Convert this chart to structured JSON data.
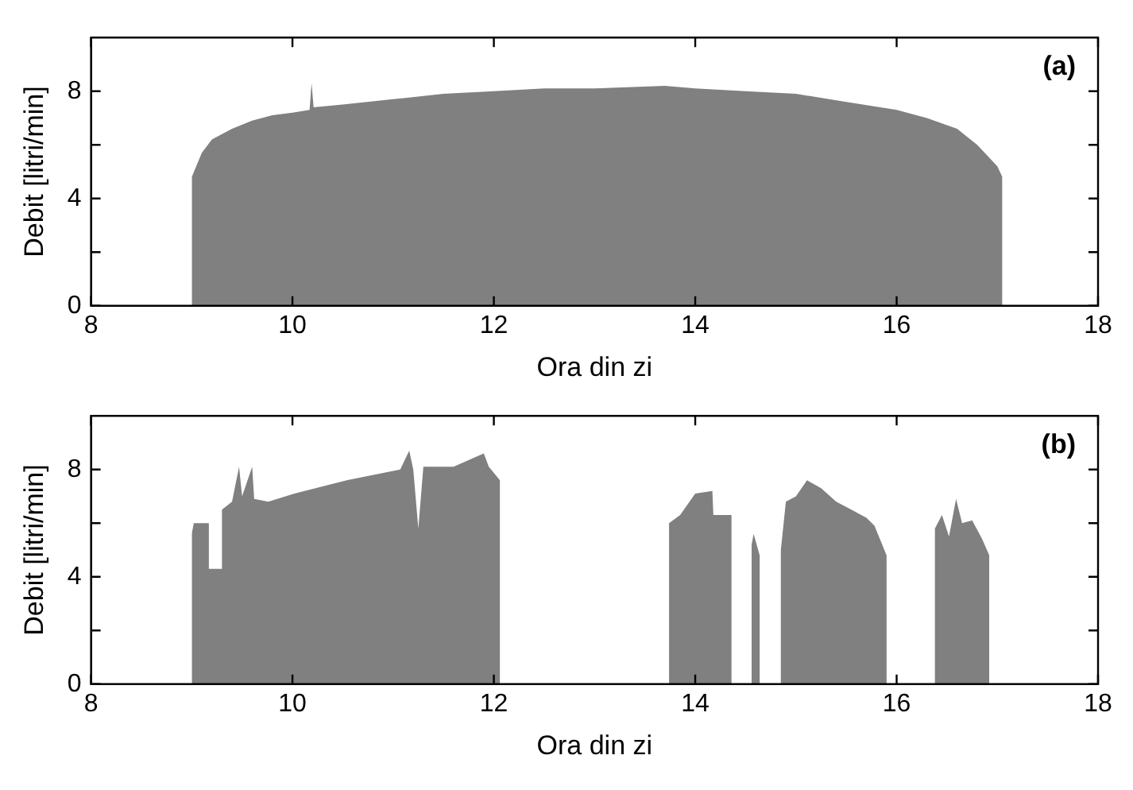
{
  "chart_data": [
    {
      "type": "area",
      "xlabel": "Ora din zi",
      "ylabel": "Debit [litri/min]",
      "annotations": [
        "(a)"
      ],
      "xlim": [
        8,
        18
      ],
      "ylim": [
        0,
        10
      ],
      "xticks": [
        8,
        10,
        12,
        14,
        16,
        18
      ],
      "yticks": [
        0,
        4,
        8
      ],
      "series": [
        {
          "color": "#808080",
          "x": [
            9.0,
            9.0,
            9.1,
            9.2,
            9.4,
            9.6,
            9.8,
            10.0,
            10.17,
            10.19,
            10.2,
            10.21,
            10.5,
            11.0,
            11.5,
            12.0,
            12.5,
            13.0,
            13.7,
            14.0,
            14.5,
            15.0,
            15.5,
            16.0,
            16.3,
            16.6,
            16.8,
            17.0,
            17.05,
            17.05
          ],
          "values": [
            0,
            4.8,
            5.7,
            6.2,
            6.6,
            6.9,
            7.1,
            7.2,
            7.3,
            8.3,
            8.3,
            7.4,
            7.5,
            7.7,
            7.9,
            8.0,
            8.1,
            8.1,
            8.2,
            8.1,
            8.0,
            7.9,
            7.6,
            7.3,
            7.0,
            6.6,
            6.0,
            5.2,
            4.8,
            0
          ]
        }
      ]
    },
    {
      "type": "area",
      "xlabel": "Ora din zi",
      "ylabel": "Debit [litri/min]",
      "annotations": [
        "(b)"
      ],
      "xlim": [
        8,
        18
      ],
      "ylim": [
        0,
        10
      ],
      "xticks": [
        8,
        10,
        12,
        14,
        16,
        18
      ],
      "yticks": [
        0,
        4,
        8
      ],
      "series": [
        {
          "color": "#808080",
          "x": [
            9.0,
            9.0,
            9.02,
            9.17,
            9.17,
            9.29,
            9.3,
            9.4,
            9.47,
            9.5,
            9.6,
            9.62,
            9.76,
            10.02,
            10.54,
            11.07,
            11.16,
            11.2,
            11.25,
            11.3,
            11.6,
            11.9,
            11.95,
            12.06,
            12.06,
            13.74,
            13.74,
            13.85,
            14.0,
            14.17,
            14.18,
            14.36,
            14.36,
            14.56,
            14.56,
            14.58,
            14.64,
            14.64,
            14.85,
            14.85,
            14.9,
            15.0,
            15.11,
            15.25,
            15.4,
            15.55,
            15.7,
            15.78,
            15.9,
            15.9,
            16.38,
            16.38,
            16.45,
            16.52,
            16.59,
            16.65,
            16.75,
            16.85,
            16.92,
            16.92
          ],
          "values": [
            0,
            5.6,
            6.0,
            6.0,
            4.3,
            4.3,
            6.5,
            6.8,
            8.1,
            7.0,
            8.1,
            6.9,
            6.8,
            7.1,
            7.6,
            8.0,
            8.7,
            8.0,
            5.8,
            8.1,
            8.1,
            8.6,
            8.1,
            7.6,
            0,
            0,
            6.0,
            6.3,
            7.1,
            7.2,
            6.3,
            6.3,
            0,
            0,
            5.2,
            5.6,
            4.8,
            0,
            0,
            5.0,
            6.8,
            7.0,
            7.6,
            7.3,
            6.8,
            6.5,
            6.2,
            5.9,
            4.8,
            0,
            0,
            5.8,
            6.3,
            5.5,
            6.9,
            6.0,
            6.1,
            5.4,
            4.8,
            0
          ]
        }
      ]
    }
  ]
}
